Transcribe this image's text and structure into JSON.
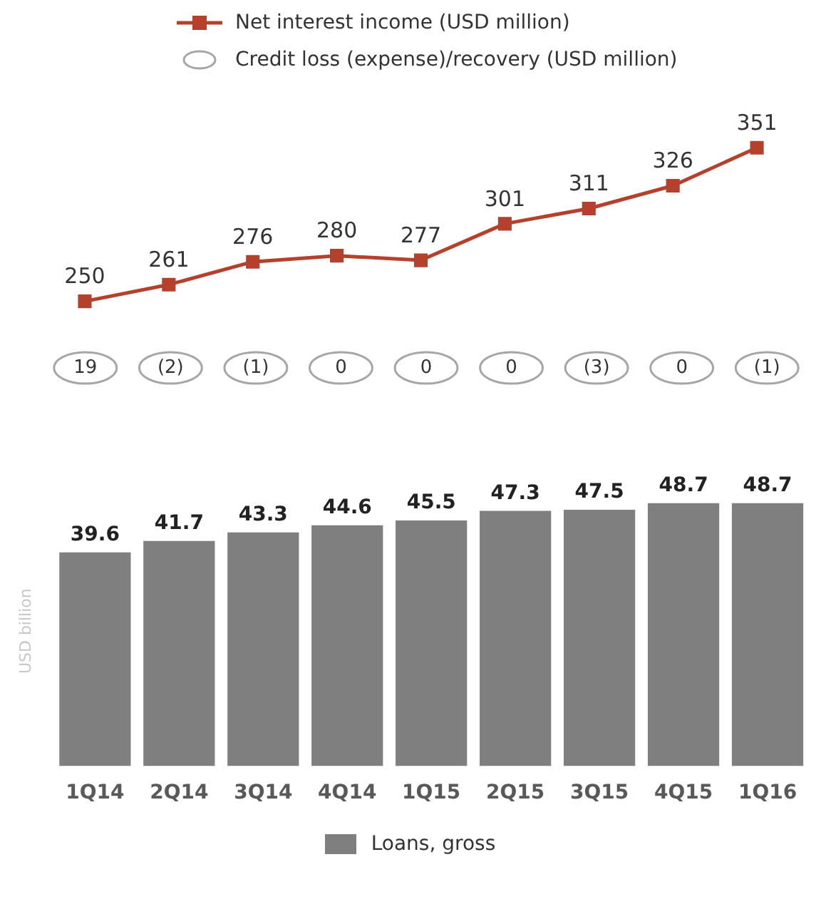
{
  "chart_data": [
    {
      "type": "line",
      "categories": [
        null,
        null,
        null,
        null,
        null,
        null,
        null,
        null,
        null
      ],
      "tick_labels": false,
      "legend": "top",
      "marker": "square",
      "data_labels": true,
      "series": [
        {
          "name": "Net interest income (USD million)",
          "color": "#b5412c",
          "values": [
            250,
            261,
            276,
            280,
            277,
            301,
            311,
            326,
            351
          ]
        }
      ]
    },
    {
      "type": "other",
      "categories": [
        null,
        null,
        null,
        null,
        null,
        null,
        null,
        null,
        null
      ],
      "legend": "top",
      "data_labels": true,
      "series": [
        {
          "name": "Credit loss (expense)/recovery (USD million)",
          "color": "#a6a6a6",
          "values": [
            19,
            -2,
            -1,
            0,
            0,
            0,
            -3,
            0,
            -1
          ],
          "value_labels": [
            "19",
            "(2)",
            "(1)",
            "0",
            "0",
            "0",
            "(3)",
            "0",
            "(1)"
          ]
        }
      ]
    },
    {
      "type": "bar",
      "categories": [
        "1Q14",
        "2Q14",
        "3Q14",
        "4Q14",
        "1Q15",
        "2Q15",
        "3Q15",
        "4Q15",
        "1Q16"
      ],
      "tick_labels": "x",
      "legend": "bottom",
      "data_labels": true,
      "ylabel": "USD billion",
      "series": [
        {
          "name": "Loans, gross",
          "color": "#7f7f7f",
          "values": [
            39.6,
            41.7,
            43.3,
            44.6,
            45.5,
            47.3,
            47.5,
            48.7,
            48.7
          ]
        }
      ]
    }
  ]
}
